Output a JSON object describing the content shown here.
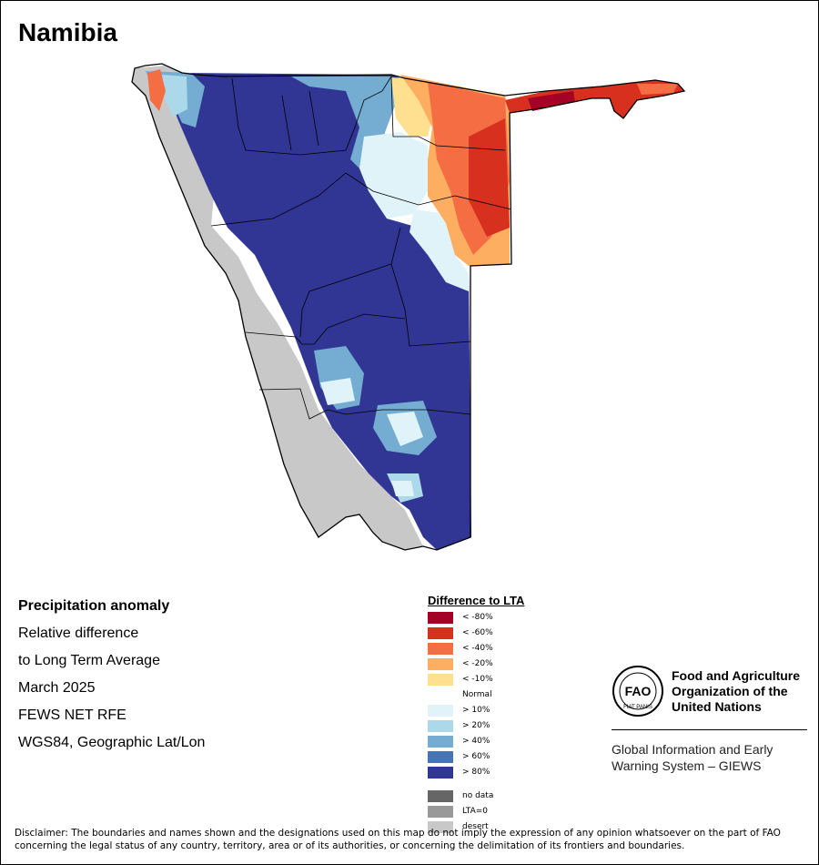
{
  "map": {
    "title": "Namibia"
  },
  "info": {
    "line1": "Precipitation anomaly",
    "line2": "Relative difference",
    "line3": "to Long Term Average",
    "line4": "March 2025",
    "line5": "FEWS NET RFE",
    "line6": "WGS84, Geographic Lat/Lon"
  },
  "legend": {
    "title": "Difference to LTA",
    "items": [
      {
        "label": "< -80%",
        "color": "#a50026"
      },
      {
        "label": "< -60%",
        "color": "#d7301f"
      },
      {
        "label": "< -40%",
        "color": "#f46d43"
      },
      {
        "label": "< -20%",
        "color": "#fdae61"
      },
      {
        "label": "< -10%",
        "color": "#fee090"
      },
      {
        "label": "Normal",
        "color": "#ffffff"
      },
      {
        "label": "> 10%",
        "color": "#e0f3f8"
      },
      {
        "label": "> 20%",
        "color": "#abd9e9"
      },
      {
        "label": "> 40%",
        "color": "#74add1"
      },
      {
        "label": "> 60%",
        "color": "#4575b4"
      },
      {
        "label": "> 80%",
        "color": "#313695"
      }
    ],
    "extra": [
      {
        "label": "no data",
        "color": "#666666"
      },
      {
        "label": "LTA=0",
        "color": "#999999"
      },
      {
        "label": "desert",
        "color": "#c8c8c8"
      }
    ]
  },
  "fao": {
    "name_line1": "Food and Agriculture",
    "name_line2": "Organization of the",
    "name_line3": "United Nations",
    "logo_letters": "FAO",
    "logo_motto": "FIAT PANIS",
    "system_line1": "Global Information and Early",
    "system_line2": "Warning System – GIEWS"
  },
  "disclaimer": "Disclaimer: The boundaries and names shown and the designations used on this map do not imply the expression of any opinion whatsoever on the part of FAO concerning the legal status of any country, territory, area or of its authorities, or concerning the delimitation of its frontiers and boundaries."
}
